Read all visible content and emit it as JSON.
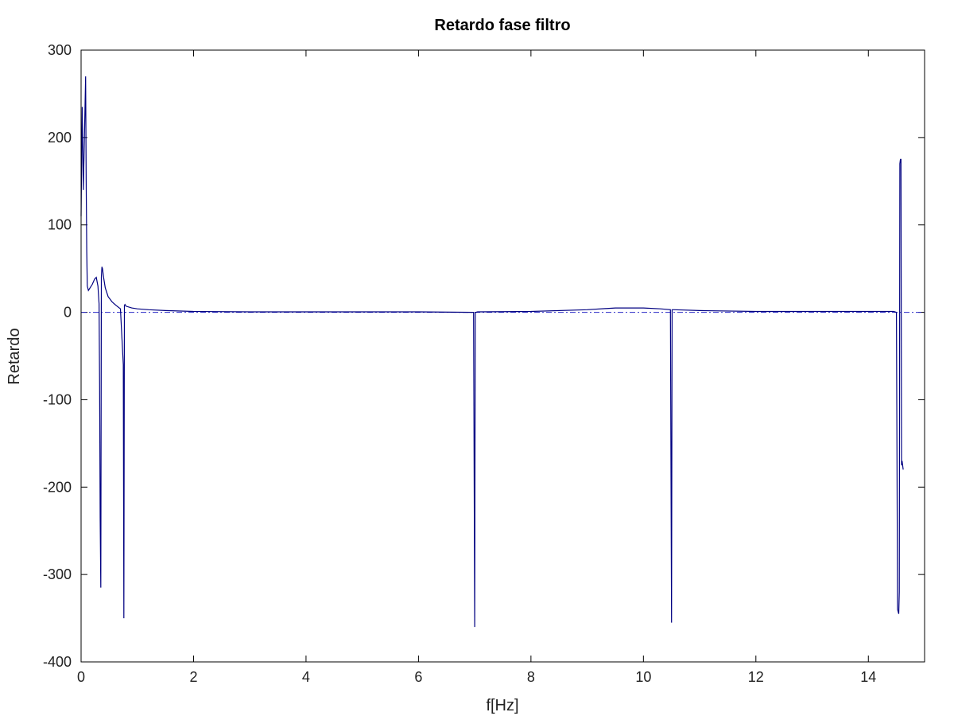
{
  "chart_data": {
    "type": "line",
    "title": "Retardo fase filtro",
    "xlabel": "f[Hz]",
    "ylabel": "Retardo",
    "xlim": [
      0,
      15
    ],
    "ylim": [
      -400,
      300
    ],
    "xticks": [
      0,
      2,
      4,
      6,
      8,
      10,
      12,
      14
    ],
    "yticks": [
      300,
      200,
      100,
      0,
      -100,
      -200,
      -300,
      -400
    ],
    "grid": false,
    "colors": {
      "series": "#000080",
      "reference": "#2a2ac8"
    },
    "series": [
      {
        "x": [
          0.0,
          0.02,
          0.04,
          0.06,
          0.08,
          0.09,
          0.1,
          0.11,
          0.13,
          0.16,
          0.2,
          0.24,
          0.27,
          0.3,
          0.32,
          0.33,
          0.34,
          0.35,
          0.36,
          0.37,
          0.38,
          0.4,
          0.43,
          0.48,
          0.55,
          0.62,
          0.7,
          0.75,
          0.76,
          0.77,
          0.78,
          0.8,
          0.9,
          1.0,
          1.2,
          1.5,
          2.0,
          3.0,
          4.0,
          5.0,
          6.0,
          6.98,
          7.0,
          7.01,
          7.02,
          7.05,
          8.0,
          9.0,
          9.5,
          10.0,
          10.3,
          10.48,
          10.5,
          10.51,
          10.52,
          10.55,
          11.0,
          12.0,
          13.0,
          14.0,
          14.45,
          14.5,
          14.52,
          14.54,
          14.55,
          14.56,
          14.57,
          14.58,
          14.59,
          14.6,
          14.61,
          14.62
        ],
        "y": [
          110,
          235,
          140,
          200,
          270,
          150,
          70,
          30,
          25,
          28,
          32,
          38,
          40,
          30,
          10,
          -80,
          -235,
          -315,
          40,
          52,
          50,
          40,
          28,
          18,
          12,
          8,
          4,
          -60,
          -350,
          8,
          9,
          7,
          5,
          4,
          3,
          2,
          1,
          0.5,
          0.5,
          0.5,
          0.5,
          0,
          -360,
          0,
          0,
          0.5,
          1,
          3,
          5,
          5,
          4,
          3,
          -355,
          3,
          3,
          3,
          2,
          1,
          1,
          1,
          1,
          0,
          -340,
          -345,
          -320,
          170,
          175,
          175,
          -175,
          -170,
          -175,
          -180
        ]
      }
    ],
    "reference_line": {
      "y": 0,
      "style": "dashdot"
    }
  }
}
